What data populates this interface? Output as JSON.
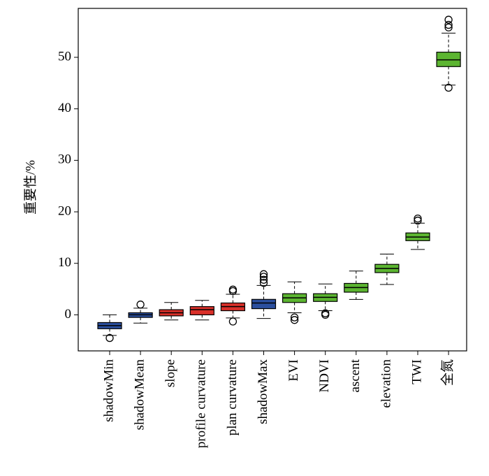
{
  "chart_data": {
    "type": "box",
    "ylabel": "重要性/%",
    "ylim": [
      -7,
      59.5
    ],
    "yticks": [
      0,
      10,
      20,
      30,
      40,
      50
    ],
    "categories": [
      "shadowMin",
      "shadowMean",
      "slope",
      "profile curvature",
      "plan curvature",
      "shadowMax",
      "EVI",
      "NDVI",
      "ascent",
      "elevation",
      "TWI",
      "全氮"
    ],
    "boxes": [
      {
        "min": -4.0,
        "q1": -2.7,
        "median": -2.1,
        "q3": -1.5,
        "max": 0,
        "outliers": [
          -4.5
        ],
        "color": "#2b4f9e"
      },
      {
        "min": -1.6,
        "q1": -0.5,
        "median": 0,
        "q3": 0.4,
        "max": 1.3,
        "outliers": [
          2.0
        ],
        "color": "#2b4f9e"
      },
      {
        "min": -1.0,
        "q1": -0.2,
        "median": 0.4,
        "q3": 1.0,
        "max": 2.4,
        "outliers": [],
        "color": "#d9302a"
      },
      {
        "min": -1.0,
        "q1": 0,
        "median": 1.0,
        "q3": 1.6,
        "max": 2.8,
        "outliers": [],
        "color": "#d9302a"
      },
      {
        "min": -0.6,
        "q1": 0.8,
        "median": 1.6,
        "q3": 2.3,
        "max": 4.0,
        "outliers": [
          -1.3,
          4.6,
          4.9
        ],
        "color": "#d9302a"
      },
      {
        "min": -0.7,
        "q1": 1.2,
        "median": 2.3,
        "q3": 3.0,
        "max": 5.7,
        "outliers": [
          6.2,
          6.8,
          7.4,
          7.9
        ],
        "color": "#2b4f9e"
      },
      {
        "min": 0.4,
        "q1": 2.4,
        "median": 3.3,
        "q3": 4.1,
        "max": 6.4,
        "outliers": [
          -0.5,
          -1.0
        ],
        "color": "#5cb531"
      },
      {
        "min": 0.8,
        "q1": 2.6,
        "median": 3.4,
        "q3": 4.1,
        "max": 6.0,
        "outliers": [
          0.3,
          0
        ],
        "color": "#5cb531"
      },
      {
        "min": 3.0,
        "q1": 4.4,
        "median": 5.3,
        "q3": 6.1,
        "max": 8.5,
        "outliers": [],
        "color": "#5cb531"
      },
      {
        "min": 5.9,
        "q1": 8.2,
        "median": 9.0,
        "q3": 9.8,
        "max": 11.8,
        "outliers": [],
        "color": "#5cb531"
      },
      {
        "min": 12.7,
        "q1": 14.4,
        "median": 15.1,
        "q3": 15.9,
        "max": 17.8,
        "outliers": [
          18.3,
          18.7
        ],
        "color": "#5cb531"
      },
      {
        "min": 44.6,
        "q1": 48.2,
        "median": 49.5,
        "q3": 51.0,
        "max": 54.7,
        "outliers": [
          44.1,
          55.8,
          56.3,
          57.3
        ],
        "color": "#5cb531"
      }
    ]
  }
}
